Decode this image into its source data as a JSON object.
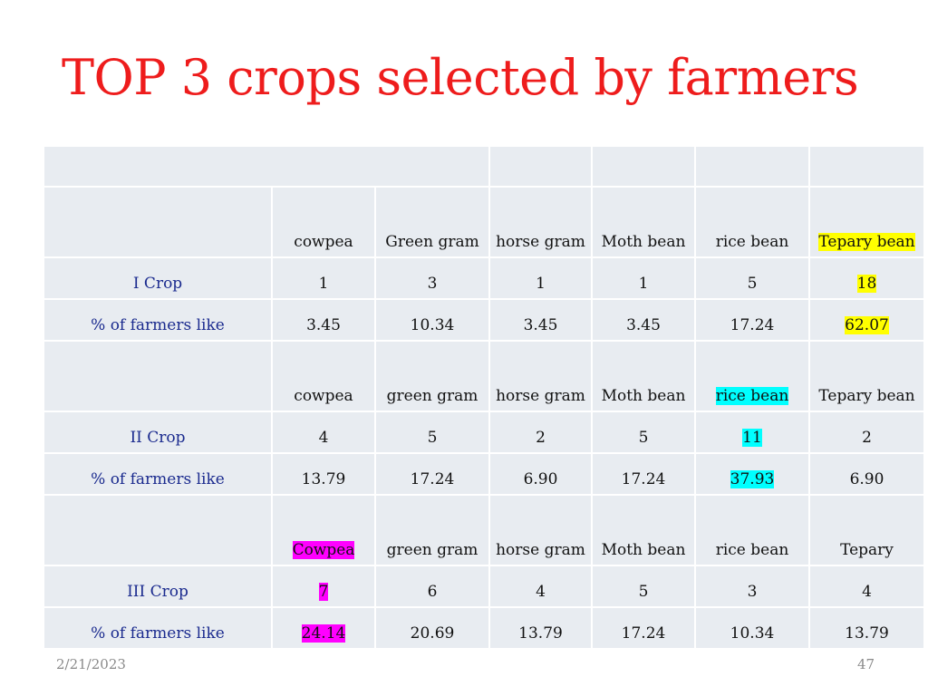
{
  "slide": {
    "title": "TOP 3 crops selected by farmers",
    "date": "2/21/2023",
    "page": "47"
  },
  "table": {
    "sections": [
      {
        "crops": [
          "cowpea",
          "Green gram",
          "horse gram",
          "Moth bean",
          "rice bean",
          "Tepary bean"
        ],
        "count_label": "I Crop",
        "counts": [
          "1",
          "3",
          "1",
          "1",
          "5",
          "18"
        ],
        "percent_label": "% of farmers like",
        "percents": [
          "3.45",
          "10.34",
          "3.45",
          "3.45",
          "17.24",
          "62.07"
        ],
        "highlight_color": "#ffff00"
      },
      {
        "crops": [
          "cowpea",
          "green gram",
          "horse gram",
          "Moth bean",
          "rice bean",
          "Tepary bean"
        ],
        "count_label": "II Crop",
        "counts": [
          "4",
          "5",
          "2",
          "5",
          "11",
          "2"
        ],
        "percent_label": "% of farmers like",
        "percents": [
          "13.79",
          "17.24",
          "6.90",
          "17.24",
          "37.93",
          "6.90"
        ],
        "highlight_color": "#00ffff"
      },
      {
        "crops": [
          "Cowpea",
          "green gram",
          "horse gram",
          "Moth bean",
          "rice bean",
          "Tepary"
        ],
        "count_label": "III Crop",
        "counts": [
          "7",
          "6",
          "4",
          "5",
          "3",
          "4"
        ],
        "percent_label": "% of farmers like",
        "percents": [
          "24.14",
          "20.69",
          "13.79",
          "17.24",
          "10.34",
          "13.79"
        ],
        "highlight_color": "#ff00ff"
      }
    ]
  },
  "colors": {
    "title": "#ee1c1c",
    "row_label": "#1a2a8e",
    "cell_background": "#e8ecf1"
  }
}
